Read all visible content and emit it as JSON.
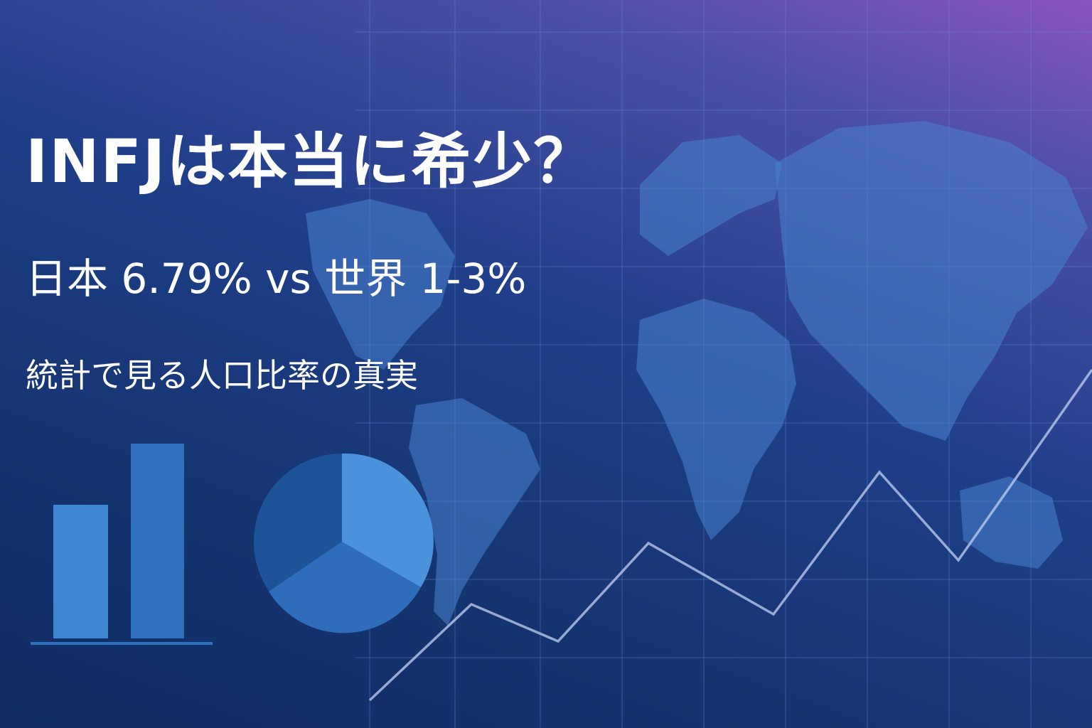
{
  "headline": {
    "title": "INFJは本当に希少？",
    "subtitle": "日本 6.79% vs 世界 1-3%",
    "tagline": "統計で見る人口比率の真実"
  },
  "colors": {
    "background_dark": "#102c62",
    "background_accent": "#8a55c0",
    "map": "#3d72c4",
    "bar_light": "#3f86d2",
    "bar_dark": "#2b68b6",
    "line": "#b8c8ee",
    "text": "#ffffff"
  },
  "illustration": {
    "bar_chart_icon": {
      "bars": 2
    },
    "pie_chart_icon": {
      "slices": 3
    },
    "line_chart_icon": "rising-zigzag",
    "world_map": "world-map-silhouette"
  }
}
